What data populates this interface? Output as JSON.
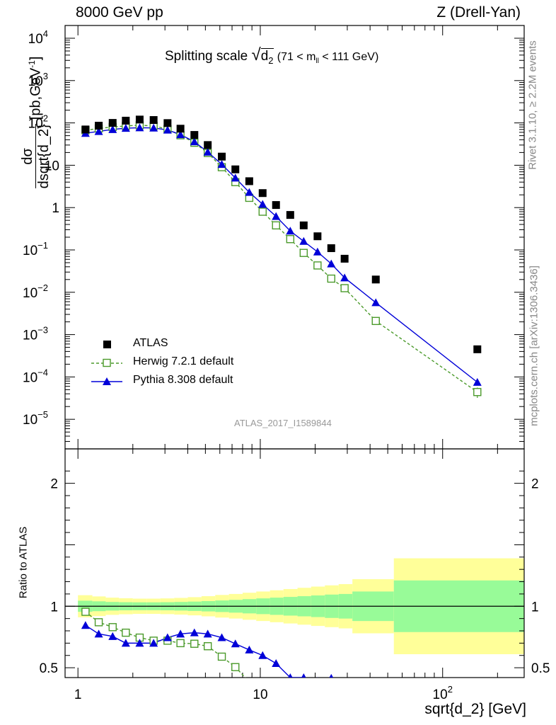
{
  "header": {
    "left": "8000 GeV pp",
    "right": "Z (Drell-Yan)"
  },
  "side": {
    "rivet": "Rivet 3.1.10, ≥ 2.2M events",
    "mcplots": "mcplots.cern.ch [arXiv:1306.3436]"
  },
  "plot_title": {
    "prefix": "Splitting scale",
    "var": "d",
    "var_sub": "2",
    "cut_a": "(71 < m",
    "cut_sub": "ll",
    "cut_b": " < 111 GeV)"
  },
  "ylabel": {
    "num": "dσ",
    "den": "dsqrt{d_2}",
    "units": "[pb,GeV",
    "units_sup": "-1",
    "units_end": "]"
  },
  "ratio_ylabel": "Ratio to ATLAS",
  "xlabel": "sqrt{d_2} [GeV]",
  "watermark": "ATLAS_2017_I1589844",
  "legend": [
    {
      "label": "ATLAS",
      "color": "#000000",
      "marker": "filled-square"
    },
    {
      "label": "Herwig 7.2.1 default",
      "color": "#4b9a2b",
      "marker": "open-square",
      "style": "dashed"
    },
    {
      "label": "Pythia 8.308 default",
      "color": "#0000d8",
      "marker": "filled-triangle",
      "style": "solid"
    }
  ],
  "chart_data": [
    {
      "type": "scatter",
      "title": "Splitting scale sqrt(d_2) (71 < m_ll < 111 GeV)",
      "xlabel": "sqrt{d_2} [GeV]",
      "ylabel": "dσ/dsqrt{d_2} [pb,GeV^-1]",
      "xscale": "log",
      "yscale": "log",
      "xlim": [
        0.85,
        280
      ],
      "ylim": [
        2e-06,
        20000
      ],
      "xticks": [
        {
          "v": 1,
          "label": "1"
        },
        {
          "v": 10,
          "label": "10"
        },
        {
          "v": 100,
          "label": "10",
          "sup": "2"
        }
      ],
      "yticks": [
        {
          "v": 10000,
          "label": "10",
          "sup": "4"
        },
        {
          "v": 1000,
          "label": "10",
          "sup": "3"
        },
        {
          "v": 100,
          "label": "10",
          "sup": "2"
        },
        {
          "v": 10,
          "label": "10"
        },
        {
          "v": 1,
          "label": "1"
        },
        {
          "v": 0.1,
          "label": "10",
          "sup": "−1"
        },
        {
          "v": 0.01,
          "label": "10",
          "sup": "−2"
        },
        {
          "v": 0.001,
          "label": "10",
          "sup": "−3"
        },
        {
          "v": 0.0001,
          "label": "10",
          "sup": "−4"
        },
        {
          "v": 1e-05,
          "label": "10",
          "sup": "−5"
        }
      ],
      "legend_position": "bottom-left",
      "series": [
        {
          "name": "ATLAS",
          "color": "#000000",
          "x": [
            1.1,
            1.3,
            1.55,
            1.83,
            2.18,
            2.6,
            3.1,
            3.65,
            4.35,
            5.15,
            6.15,
            7.3,
            8.7,
            10.3,
            12.2,
            14.6,
            17.3,
            20.6,
            24.5,
            29,
            43,
            155
          ],
          "y": [
            70,
            86,
            100,
            113,
            120,
            117,
            99,
            73,
            52,
            30,
            16,
            8,
            4.2,
            2.2,
            1.15,
            0.67,
            0.38,
            0.21,
            0.11,
            0.062,
            0.02,
            0.00045
          ]
        },
        {
          "name": "Herwig 7.2.1 default",
          "color": "#4b9a2b",
          "x": [
            1.1,
            1.3,
            1.55,
            1.83,
            2.18,
            2.6,
            3.1,
            3.65,
            4.35,
            5.15,
            6.15,
            7.3,
            8.7,
            10.3,
            12.2,
            14.6,
            17.3,
            20.6,
            24.5,
            29,
            43,
            155
          ],
          "y": [
            67,
            74,
            80,
            85,
            88,
            85,
            71,
            51,
            34,
            19.5,
            9,
            4,
            1.7,
            0.8,
            0.38,
            0.18,
            0.085,
            0.043,
            0.021,
            0.0125,
            0.0021,
            4.4e-05
          ],
          "yerr_last": [
            3.2e-05,
            5.6e-05
          ]
        },
        {
          "name": "Pythia 8.308 default",
          "color": "#0000d8",
          "x": [
            1.1,
            1.3,
            1.55,
            1.83,
            2.18,
            2.6,
            3.1,
            3.65,
            4.35,
            5.15,
            6.15,
            7.3,
            8.7,
            10.3,
            12.2,
            14.6,
            17.3,
            20.6,
            24.5,
            29,
            43,
            155
          ],
          "y": [
            57,
            63,
            70,
            75,
            77,
            76,
            68,
            53,
            36,
            20.5,
            10.5,
            5,
            2.3,
            1.2,
            0.62,
            0.28,
            0.16,
            0.09,
            0.047,
            0.022,
            0.0057,
            7.5e-05
          ]
        }
      ]
    },
    {
      "type": "scatter",
      "ylabel": "Ratio to ATLAS",
      "xscale": "log",
      "xlim": [
        0.85,
        280
      ],
      "ylim": [
        0.42,
        2.28
      ],
      "yticks": [
        {
          "v": 0.5,
          "label": "0.5"
        },
        {
          "v": 1,
          "label": "1"
        },
        {
          "v": 2,
          "label": "2"
        }
      ],
      "bands": {
        "edges": [
          1,
          1.2,
          1.42,
          1.68,
          2.0,
          2.38,
          2.83,
          3.37,
          4.0,
          4.76,
          5.66,
          6.73,
          8.0,
          9.5,
          11.3,
          13.4,
          16,
          19,
          22.6,
          26.9,
          32,
          54,
          280
        ],
        "inner_half": [
          0.045,
          0.04,
          0.035,
          0.033,
          0.032,
          0.032,
          0.033,
          0.035,
          0.038,
          0.042,
          0.047,
          0.052,
          0.058,
          0.064,
          0.07,
          0.076,
          0.082,
          0.088,
          0.095,
          0.1,
          0.12,
          0.21
        ],
        "outer_half": [
          0.09,
          0.08,
          0.07,
          0.065,
          0.062,
          0.062,
          0.064,
          0.068,
          0.074,
          0.082,
          0.092,
          0.1,
          0.11,
          0.12,
          0.13,
          0.14,
          0.15,
          0.16,
          0.17,
          0.18,
          0.22,
          0.39
        ],
        "inner_color": "#98fb98",
        "outer_color": "#ffff99"
      },
      "series": [
        {
          "name": "Herwig 7.2.1 default",
          "color": "#4b9a2b",
          "x": [
            1.1,
            1.3,
            1.55,
            1.83,
            2.18,
            2.6,
            3.1,
            3.65,
            4.35,
            5.15,
            6.15,
            7.3,
            8.7
          ],
          "y": [
            0.955,
            0.87,
            0.83,
            0.785,
            0.745,
            0.72,
            0.72,
            0.7,
            0.695,
            0.675,
            0.59,
            0.505,
            0.385
          ]
        },
        {
          "name": "Pythia 8.308 default",
          "color": "#0000d8",
          "x": [
            1.1,
            1.3,
            1.55,
            1.83,
            2.18,
            2.6,
            3.1,
            3.65,
            4.35,
            5.15,
            6.15,
            7.3,
            8.7,
            10.3,
            12.2,
            14.6,
            17.3,
            20.6,
            24.5,
            29
          ],
          "y": [
            0.845,
            0.775,
            0.755,
            0.7,
            0.7,
            0.7,
            0.745,
            0.775,
            0.785,
            0.775,
            0.745,
            0.695,
            0.645,
            0.6,
            0.535,
            0.42,
            0.42,
            0.39,
            0.415,
            0.33
          ]
        }
      ]
    }
  ]
}
